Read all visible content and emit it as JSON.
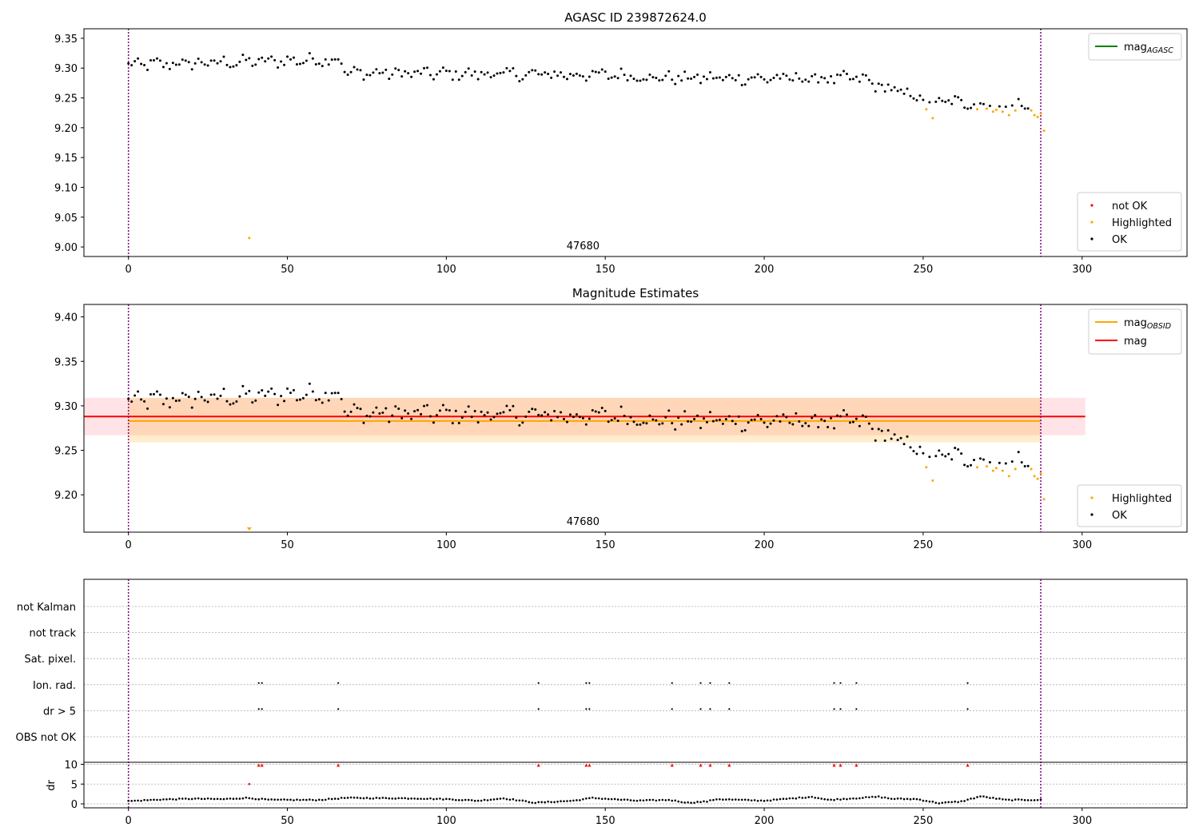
{
  "chart_data": [
    {
      "type": "scatter",
      "title": "AGASC ID 239872624.0",
      "xlabel": "",
      "ylabel": "",
      "xlim": [
        -14,
        333
      ],
      "ylim": [
        8.984,
        9.366
      ],
      "xticks": [
        0,
        50,
        100,
        150,
        200,
        250,
        300
      ],
      "yticks": [
        "9.00",
        "9.05",
        "9.10",
        "9.15",
        "9.20",
        "9.25",
        "9.30",
        "9.35"
      ],
      "obsid_label": "47680",
      "obsid_label_x": 143,
      "vlines": [
        0,
        287
      ],
      "legend_lines": [
        {
          "name": "mag",
          "sub": "AGASC",
          "color": "#008000"
        }
      ],
      "legend_points": [
        {
          "name": "not OK",
          "color": "#ff0000"
        },
        {
          "name": "Highlighted",
          "color": "#ffa500"
        },
        {
          "name": "OK",
          "color": "#000000"
        }
      ],
      "colors": {
        "ok": "#000000",
        "highlighted": "#ffa500",
        "not_ok": "#ff0000",
        "vline": "#800080"
      },
      "notes": "OK values read approximately from the figure",
      "ok_segments": [
        {
          "from": 0,
          "to": 67,
          "v0": 9.305,
          "v1": 9.315
        },
        {
          "from": 68,
          "to": 160,
          "v0": 9.292,
          "v1": 9.288
        },
        {
          "from": 161,
          "to": 232,
          "v0": 9.284,
          "v1": 9.282
        },
        {
          "from": 233,
          "to": 249,
          "v0": 9.275,
          "v1": 9.25
        },
        {
          "from": 250,
          "to": 286,
          "v0": 9.245,
          "v1": 9.237
        }
      ],
      "highlighted_points": [
        [
          38,
          9.015
        ],
        [
          251,
          9.231
        ],
        [
          253,
          9.216
        ],
        [
          267,
          9.231
        ],
        [
          270,
          9.232
        ],
        [
          272,
          9.227
        ],
        [
          273,
          9.23
        ],
        [
          275,
          9.227
        ],
        [
          277,
          9.221
        ],
        [
          279,
          9.229
        ],
        [
          284,
          9.229
        ],
        [
          285,
          9.221
        ],
        [
          286,
          9.218
        ],
        [
          287,
          9.224
        ],
        [
          288,
          9.195
        ]
      ]
    },
    {
      "type": "scatter",
      "title": "Magnitude Estimates",
      "xlabel": "",
      "ylabel": "",
      "xlim": [
        -14,
        333
      ],
      "ylim": [
        9.158,
        9.414
      ],
      "xticks": [
        0,
        50,
        100,
        150,
        200,
        250,
        300
      ],
      "yticks": [
        "9.20",
        "9.25",
        "9.30",
        "9.35",
        "9.40"
      ],
      "obsid_label": "47680",
      "obsid_label_x": 143,
      "vlines": [
        0,
        287
      ],
      "mag_line": {
        "value": 9.288,
        "band": [
          9.267,
          9.309
        ],
        "x": [
          -14,
          301
        ]
      },
      "mag_obsid_line": {
        "value": 9.283,
        "band": [
          9.259,
          9.309
        ],
        "x": [
          0,
          287
        ]
      },
      "legend_lines": [
        {
          "name": "mag",
          "sub": "OBSID",
          "color": "#ffa500"
        },
        {
          "name": "mag",
          "sub": "",
          "color": "#ff0000"
        }
      ],
      "legend_points": [
        {
          "name": "Highlighted",
          "color": "#ffa500"
        },
        {
          "name": "OK",
          "color": "#000000"
        }
      ]
    },
    {
      "type": "scatter",
      "title": "",
      "xlim": [
        -14,
        333
      ],
      "xticks": [
        0,
        50,
        100,
        150,
        200,
        250,
        300
      ],
      "flag_rows": [
        "not Kalman",
        "not track",
        "Sat. pixel.",
        "Ion. rad.",
        "dr > 5",
        "OBS not OK"
      ],
      "flag_points": {
        "Ion. rad.": [
          41,
          42,
          66,
          129,
          144,
          145,
          171,
          180,
          183,
          189,
          222,
          224,
          229,
          264
        ],
        "dr > 5": [
          41,
          42,
          66,
          129,
          144,
          145,
          171,
          180,
          183,
          189,
          222,
          224,
          229,
          264
        ]
      },
      "dr_ylabel": "dr",
      "dr_ylim": [
        -0.6,
        10.5
      ],
      "dr_yticks": [
        0,
        5,
        10
      ],
      "dr_points": [
        [
          38,
          5
        ]
      ],
      "dr_capped": [
        41,
        42,
        66,
        129,
        144,
        145,
        171,
        180,
        183,
        189,
        222,
        224,
        229,
        264
      ],
      "dr_baseline_knots": [
        [
          0,
          0.7
        ],
        [
          10,
          1.1
        ],
        [
          20,
          1.3
        ],
        [
          30,
          1.2
        ],
        [
          37,
          1.5
        ],
        [
          45,
          1.0
        ],
        [
          60,
          1.0
        ],
        [
          68,
          1.5
        ],
        [
          90,
          1.4
        ],
        [
          100,
          1.2
        ],
        [
          110,
          0.8
        ],
        [
          118,
          1.4
        ],
        [
          128,
          0.3
        ],
        [
          140,
          0.8
        ],
        [
          146,
          1.5
        ],
        [
          160,
          0.8
        ],
        [
          170,
          1.0
        ],
        [
          176,
          0.3
        ],
        [
          182,
          0.6
        ],
        [
          185,
          1.2
        ],
        [
          200,
          0.8
        ],
        [
          215,
          1.8
        ],
        [
          220,
          1.0
        ],
        [
          236,
          1.8
        ],
        [
          240,
          1.3
        ],
        [
          248,
          1.2
        ],
        [
          255,
          0.2
        ],
        [
          262,
          0.6
        ],
        [
          268,
          1.9
        ],
        [
          276,
          1.0
        ],
        [
          287,
          1.0
        ]
      ]
    }
  ]
}
